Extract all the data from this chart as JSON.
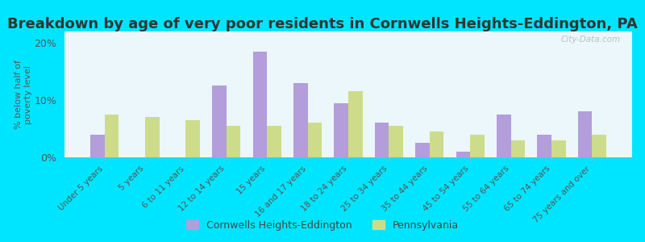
{
  "title": "Breakdown by age of very poor residents in Cornwells Heights-Eddington, PA",
  "ylabel": "% below half of\npoverty level",
  "categories": [
    "Under 5 years",
    "5 years",
    "6 to 11 years",
    "12 to 14 years",
    "15 years",
    "16 and 17 years",
    "18 to 24 years",
    "25 to 34 years",
    "35 to 44 years",
    "45 to 54 years",
    "55 to 64 years",
    "65 to 74 years",
    "75 years and over"
  ],
  "cornwells": [
    4.0,
    0.0,
    0.0,
    12.5,
    18.5,
    13.0,
    9.5,
    6.0,
    2.5,
    1.0,
    7.5,
    4.0,
    8.0
  ],
  "pennsylvania": [
    7.5,
    7.0,
    6.5,
    5.5,
    5.5,
    6.0,
    11.5,
    5.5,
    4.5,
    4.0,
    3.0,
    3.0,
    4.0
  ],
  "cornwells_color": "#b39ddb",
  "pennsylvania_color": "#cddc8a",
  "background_outer": "#00e5ff",
  "ylim": [
    0,
    22
  ],
  "yticks": [
    0,
    10,
    20
  ],
  "ytick_labels": [
    "0%",
    "10%",
    "20%"
  ],
  "title_fontsize": 13,
  "legend_labels": [
    "Cornwells Heights-Eddington",
    "Pennsylvania"
  ],
  "watermark": "City-Data.com"
}
